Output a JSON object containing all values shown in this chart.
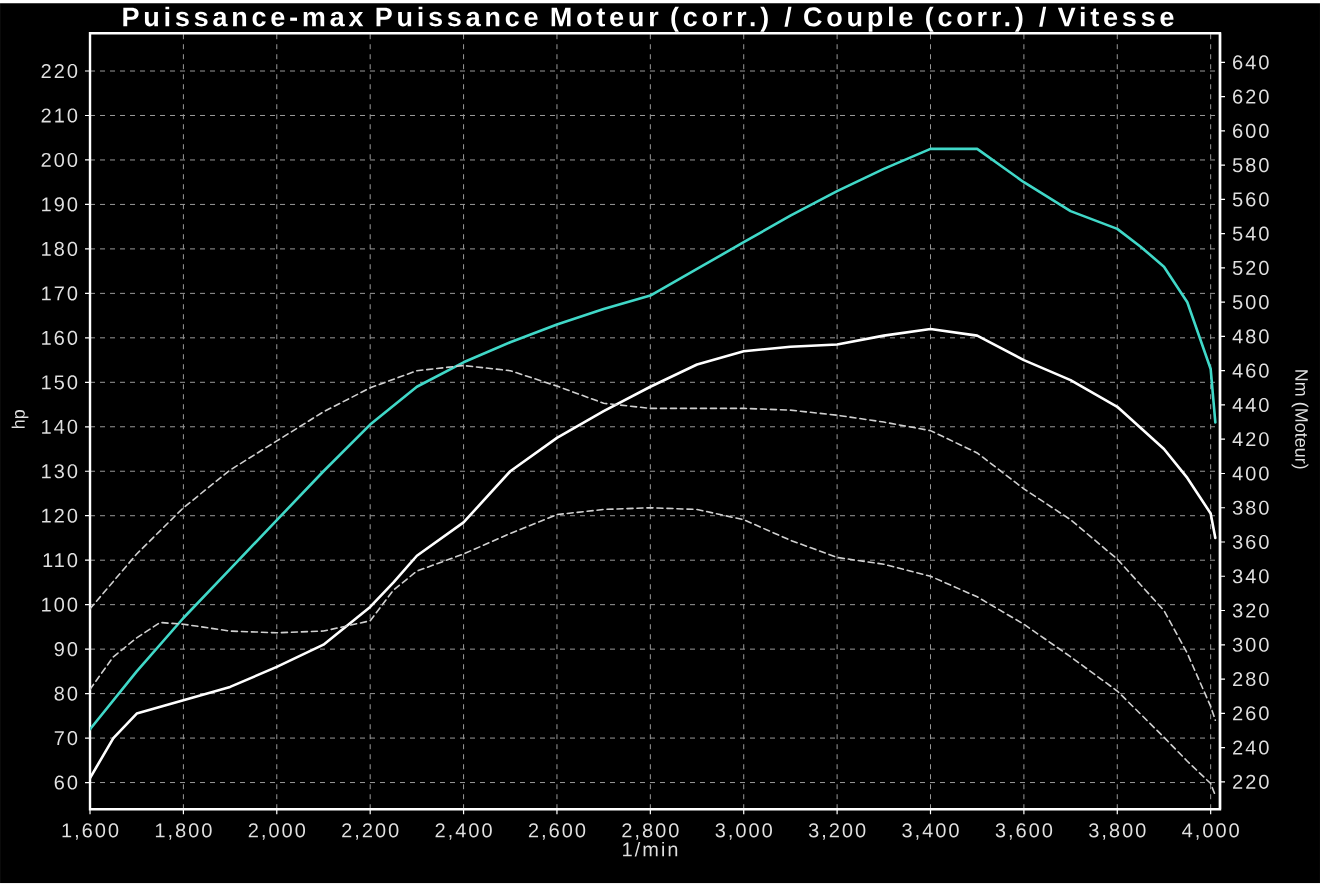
{
  "chart_data": {
    "type": "line",
    "title": "Puissance-max Puissance Moteur (corr.) / Couple (corr.) / Vitesse",
    "xlabel": "1/min",
    "ylabel": "hp",
    "y2label": "Nm (Moteur)",
    "xlim": [
      1600,
      4020
    ],
    "ylim": [
      54,
      228.5
    ],
    "y2lim": [
      204,
      657
    ],
    "xticks": [
      {
        "value": 1600,
        "label": "1,600"
      },
      {
        "value": 1800,
        "label": "1,800"
      },
      {
        "value": 2000,
        "label": "2,000"
      },
      {
        "value": 2200,
        "label": "2,200"
      },
      {
        "value": 2400,
        "label": "2,400"
      },
      {
        "value": 2600,
        "label": "2,600"
      },
      {
        "value": 2800,
        "label": "2,800"
      },
      {
        "value": 3000,
        "label": "3,000"
      },
      {
        "value": 3200,
        "label": "3,200"
      },
      {
        "value": 3400,
        "label": "3,400"
      },
      {
        "value": 3600,
        "label": "3,600"
      },
      {
        "value": 3800,
        "label": "3,800"
      },
      {
        "value": 4000,
        "label": "4,000"
      }
    ],
    "yticks": [
      60,
      70,
      80,
      90,
      100,
      110,
      120,
      130,
      140,
      150,
      160,
      170,
      180,
      190,
      200,
      210,
      220
    ],
    "y2ticks": [
      220,
      240,
      260,
      280,
      300,
      320,
      340,
      360,
      380,
      400,
      420,
      440,
      460,
      480,
      500,
      520,
      540,
      560,
      580,
      600,
      620,
      640
    ],
    "grid": true,
    "series": [
      {
        "color": "#40d8c8",
        "line_style": "solid",
        "x": [
          1600,
          1700,
          1800,
          1900,
          2000,
          2100,
          2200,
          2300,
          2400,
          2500,
          2600,
          2700,
          2800,
          2900,
          3000,
          3100,
          3200,
          3300,
          3400,
          3500,
          3600,
          3700,
          3800,
          3850,
          3900,
          3950,
          4000,
          4010
        ],
        "values": [
          72,
          85,
          97,
          108,
          119,
          130,
          140.5,
          149,
          154.5,
          159,
          163,
          166.5,
          169.5,
          175.5,
          181.5,
          187.5,
          193,
          198,
          202.5,
          202.5,
          195,
          188.5,
          184.5,
          180.5,
          176,
          168,
          153,
          141
        ]
      },
      {
        "color": "#ffffff",
        "line_style": "solid",
        "x": [
          1600,
          1650,
          1700,
          1800,
          1900,
          2000,
          2100,
          2200,
          2250,
          2300,
          2400,
          2500,
          2600,
          2700,
          2800,
          2900,
          3000,
          3100,
          3200,
          3300,
          3400,
          3500,
          3600,
          3700,
          3800,
          3900,
          3950,
          4000,
          4010
        ],
        "values": [
          61,
          70,
          75.5,
          78.5,
          81.5,
          86,
          91,
          99.5,
          105,
          111,
          118.5,
          130,
          137.5,
          143.5,
          149,
          154,
          157,
          158,
          158.5,
          160.5,
          162,
          160.5,
          155,
          150.5,
          144.5,
          135,
          128.5,
          120.5,
          115
        ]
      },
      {
        "color": "#d0d0d0",
        "line_style": "dashed",
        "axis": "y2",
        "x": [
          1600,
          1700,
          1800,
          1900,
          2000,
          2100,
          2200,
          2300,
          2400,
          2500,
          2600,
          2700,
          2800,
          2900,
          3000,
          3100,
          3200,
          3300,
          3400,
          3500,
          3600,
          3700,
          3800,
          3900,
          3950,
          4000,
          4010
        ],
        "values": [
          321,
          353,
          380,
          402,
          419,
          436,
          450,
          460,
          463,
          460,
          451,
          441,
          438,
          438,
          438,
          437,
          434,
          430,
          425,
          412,
          391,
          373,
          350,
          320,
          295,
          264,
          256
        ]
      },
      {
        "color": "#d0d0d0",
        "line_style": "dashed",
        "axis": "y2",
        "x": [
          1600,
          1650,
          1700,
          1750,
          1800,
          1900,
          2000,
          2100,
          2200,
          2250,
          2300,
          2400,
          2500,
          2600,
          2700,
          2800,
          2900,
          3000,
          3100,
          3200,
          3300,
          3400,
          3500,
          3600,
          3700,
          3800,
          3900,
          3950,
          4000,
          4010
        ],
        "values": [
          274,
          293,
          304,
          313,
          312,
          308,
          307,
          308,
          314,
          332,
          343,
          353,
          365,
          376,
          379,
          380,
          379,
          373,
          361,
          351,
          347,
          340,
          328,
          312,
          293,
          273,
          246,
          232,
          219,
          212
        ]
      }
    ]
  }
}
